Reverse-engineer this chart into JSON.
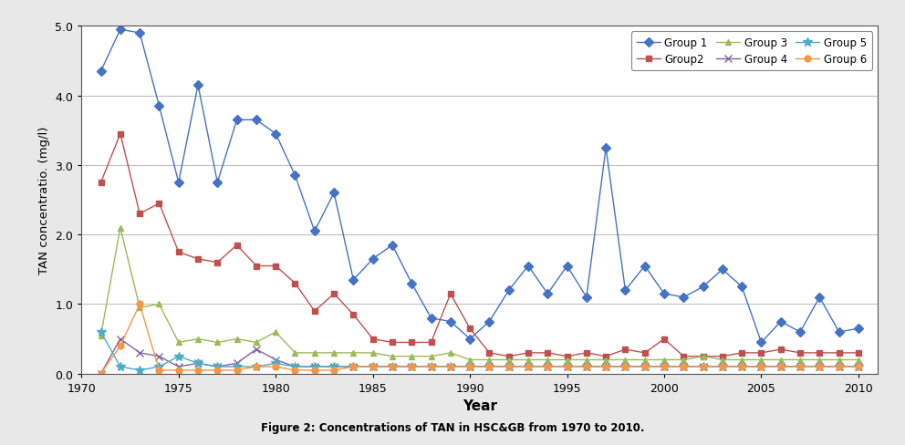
{
  "title": "Figure 2: Concentrations of TAN in HSC&GB from 1970 to 2010.",
  "ylabel": "TAN concentratio. (mg/l)",
  "xlabel": "Year",
  "ylim": [
    0,
    5.0
  ],
  "xlim": [
    1970,
    2011
  ],
  "yticks": [
    0.0,
    1.0,
    2.0,
    3.0,
    4.0,
    5.0
  ],
  "xticks": [
    1970,
    1975,
    1980,
    1985,
    1990,
    1995,
    2000,
    2005,
    2010
  ],
  "groups": [
    {
      "name": "Group 1",
      "color": "#4472C4",
      "marker": "D",
      "markersize": 5,
      "years": [
        1971,
        1972,
        1973,
        1974,
        1975,
        1976,
        1977,
        1978,
        1979,
        1980,
        1981,
        1982,
        1983,
        1984,
        1985,
        1986,
        1987,
        1988,
        1989,
        1990,
        1991,
        1992,
        1993,
        1994,
        1995,
        1996,
        1997,
        1998,
        1999,
        2000,
        2001,
        2002,
        2003,
        2004,
        2005,
        2006,
        2007,
        2008,
        2009,
        2010
      ],
      "values": [
        4.35,
        4.95,
        4.9,
        3.85,
        2.75,
        4.15,
        2.75,
        3.65,
        3.65,
        3.45,
        2.85,
        2.05,
        2.6,
        1.35,
        1.65,
        1.85,
        1.3,
        0.8,
        0.75,
        0.5,
        0.75,
        1.2,
        1.55,
        1.15,
        1.55,
        1.1,
        3.25,
        1.2,
        1.55,
        1.15,
        1.1,
        1.25,
        1.5,
        1.25,
        0.45,
        0.75,
        0.6,
        1.1,
        0.6,
        0.65
      ]
    },
    {
      "name": "Group2",
      "color": "#C0504D",
      "marker": "s",
      "markersize": 5,
      "years": [
        1971,
        1972,
        1973,
        1974,
        1975,
        1976,
        1977,
        1978,
        1979,
        1980,
        1981,
        1982,
        1983,
        1984,
        1985,
        1986,
        1987,
        1988,
        1989,
        1990,
        1991,
        1992,
        1993,
        1994,
        1995,
        1996,
        1997,
        1998,
        1999,
        2000,
        2001,
        2002,
        2003,
        2004,
        2005,
        2006,
        2007,
        2008,
        2009,
        2010
      ],
      "values": [
        2.75,
        3.45,
        2.3,
        2.45,
        1.75,
        1.65,
        1.6,
        1.85,
        1.55,
        1.55,
        1.3,
        0.9,
        1.15,
        0.85,
        0.5,
        0.45,
        0.45,
        0.45,
        1.15,
        0.65,
        0.3,
        0.25,
        0.3,
        0.3,
        0.25,
        0.3,
        0.25,
        0.35,
        0.3,
        0.5,
        0.25,
        0.25,
        0.25,
        0.3,
        0.3,
        0.35,
        0.3,
        0.3,
        0.3,
        0.3
      ]
    },
    {
      "name": "Group 3",
      "color": "#9BBB59",
      "marker": "^",
      "markersize": 5,
      "years": [
        1971,
        1972,
        1973,
        1974,
        1975,
        1976,
        1977,
        1978,
        1979,
        1980,
        1981,
        1982,
        1983,
        1984,
        1985,
        1986,
        1987,
        1988,
        1989,
        1990,
        1991,
        1992,
        1993,
        1994,
        1995,
        1996,
        1997,
        1998,
        1999,
        2000,
        2001,
        2002,
        2003,
        2004,
        2005,
        2006,
        2007,
        2008,
        2009,
        2010
      ],
      "values": [
        0.55,
        2.1,
        0.95,
        1.0,
        0.45,
        0.5,
        0.45,
        0.5,
        0.45,
        0.6,
        0.3,
        0.3,
        0.3,
        0.3,
        0.3,
        0.25,
        0.25,
        0.25,
        0.3,
        0.2,
        0.2,
        0.2,
        0.2,
        0.2,
        0.2,
        0.2,
        0.2,
        0.2,
        0.2,
        0.2,
        0.2,
        0.25,
        0.2,
        0.2,
        0.2,
        0.2,
        0.2,
        0.2,
        0.2,
        0.2
      ]
    },
    {
      "name": "Group 4",
      "color": "#8064A2",
      "marker": "x",
      "markersize": 6,
      "years": [
        1971,
        1972,
        1973,
        1974,
        1975,
        1976,
        1977,
        1978,
        1979,
        1980,
        1981,
        1982,
        1983,
        1984,
        1985,
        1986,
        1987,
        1988,
        1989,
        1990,
        1991,
        1992,
        1993,
        1994,
        1995,
        1996,
        1997,
        1998,
        1999,
        2000,
        2001,
        2002,
        2003,
        2004,
        2005,
        2006,
        2007,
        2008,
        2009,
        2010
      ],
      "values": [
        0.0,
        0.5,
        0.3,
        0.25,
        0.1,
        0.15,
        0.1,
        0.15,
        0.35,
        0.2,
        0.1,
        0.1,
        0.1,
        0.1,
        0.1,
        0.1,
        0.1,
        0.1,
        0.1,
        0.1,
        0.1,
        0.1,
        0.1,
        0.1,
        0.1,
        0.1,
        0.1,
        0.1,
        0.1,
        0.1,
        0.1,
        0.1,
        0.1,
        0.1,
        0.1,
        0.1,
        0.1,
        0.1,
        0.1,
        0.1
      ]
    },
    {
      "name": "Group 5",
      "color": "#4BACC6",
      "marker": "*",
      "markersize": 7,
      "years": [
        1971,
        1972,
        1973,
        1974,
        1975,
        1976,
        1977,
        1978,
        1979,
        1980,
        1981,
        1982,
        1983,
        1984,
        1985,
        1986,
        1987,
        1988,
        1989,
        1990,
        1991,
        1992,
        1993,
        1994,
        1995,
        1996,
        1997,
        1998,
        1999,
        2000,
        2001,
        2002,
        2003,
        2004,
        2005,
        2006,
        2007,
        2008,
        2009,
        2010
      ],
      "values": [
        0.6,
        0.1,
        0.05,
        0.1,
        0.25,
        0.15,
        0.1,
        0.1,
        0.1,
        0.15,
        0.1,
        0.1,
        0.1,
        0.1,
        0.1,
        0.1,
        0.1,
        0.1,
        0.1,
        0.1,
        0.1,
        0.1,
        0.1,
        0.1,
        0.1,
        0.1,
        0.1,
        0.1,
        0.1,
        0.1,
        0.1,
        0.1,
        0.1,
        0.1,
        0.1,
        0.1,
        0.1,
        0.1,
        0.1,
        0.1
      ]
    },
    {
      "name": "Group 6",
      "color": "#F79646",
      "marker": "o",
      "markersize": 5,
      "years": [
        1971,
        1972,
        1973,
        1974,
        1975,
        1976,
        1977,
        1978,
        1979,
        1980,
        1981,
        1982,
        1983,
        1984,
        1985,
        1986,
        1987,
        1988,
        1989,
        1990,
        1991,
        1992,
        1993,
        1994,
        1995,
        1996,
        1997,
        1998,
        1999,
        2000,
        2001,
        2002,
        2003,
        2004,
        2005,
        2006,
        2007,
        2008,
        2009,
        2010
      ],
      "values": [
        0.0,
        0.4,
        1.0,
        0.05,
        0.05,
        0.05,
        0.05,
        0.05,
        0.1,
        0.1,
        0.05,
        0.05,
        0.05,
        0.1,
        0.1,
        0.1,
        0.1,
        0.1,
        0.1,
        0.1,
        0.1,
        0.1,
        0.1,
        0.1,
        0.1,
        0.1,
        0.1,
        0.1,
        0.1,
        0.1,
        0.1,
        0.1,
        0.1,
        0.1,
        0.1,
        0.1,
        0.1,
        0.1,
        0.1,
        0.1
      ]
    }
  ],
  "legend_ncol": 3,
  "grid_color": "#BBBBBB",
  "background_color": "#FFFFFF",
  "border_color": "#555555",
  "fig_facecolor": "#E8E8E8"
}
